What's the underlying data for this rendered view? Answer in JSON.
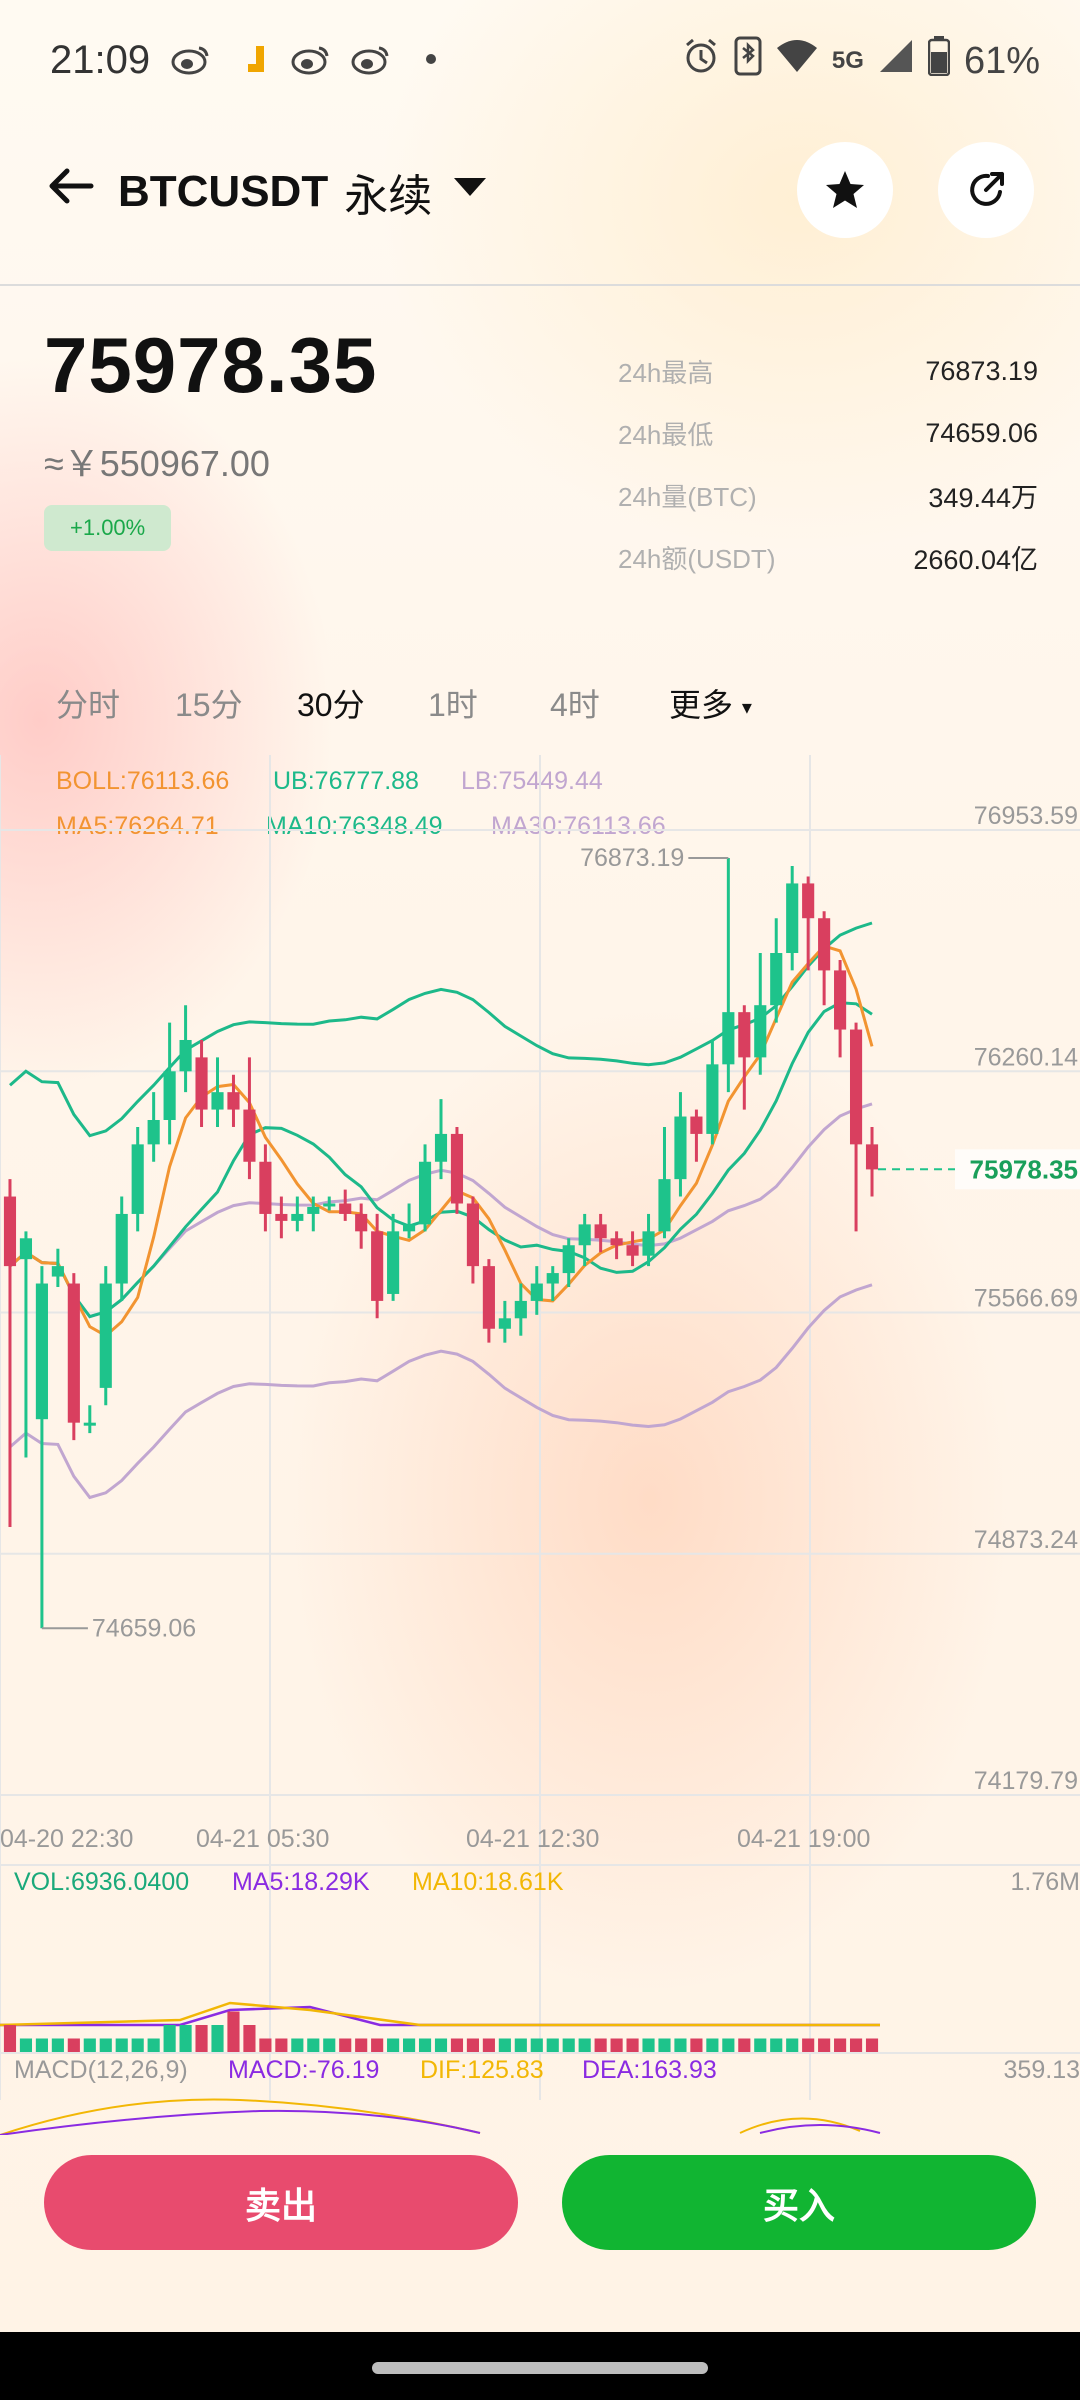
{
  "status_bar": {
    "time": "21:09",
    "battery": "61%",
    "network": "5G",
    "apps": [
      "weibo-icon",
      "binance-icon",
      "weibo-icon",
      "weibo-icon",
      "dot-icon"
    ],
    "indicators": [
      "alarm-icon",
      "bluetooth-icon",
      "wifi-icon",
      "5g-icon",
      "signal-icon",
      "battery-icon"
    ]
  },
  "header": {
    "symbol": "BTCUSDT",
    "contract_type": "永续",
    "back_icon": "arrow-left-icon",
    "dropdown_icon": "caret-down-icon",
    "favorite_icon": "star-icon",
    "share_icon": "share-icon"
  },
  "price": {
    "last": "75978.35",
    "cny": "≈￥550967.00",
    "change_pct": "+1.00%"
  },
  "stats": [
    {
      "label": "24h最高",
      "value": "76873.19"
    },
    {
      "label": "24h最低",
      "value": "74659.06"
    },
    {
      "label": "24h量(BTC)",
      "value": "349.44万"
    },
    {
      "label": "24h额(USDT)",
      "value": "2660.04亿"
    }
  ],
  "tabs": [
    {
      "label": "分时",
      "active": false
    },
    {
      "label": "15分",
      "active": false
    },
    {
      "label": "30分",
      "active": true
    },
    {
      "label": "1时",
      "active": false
    },
    {
      "label": "4时",
      "active": false
    },
    {
      "label": "更多",
      "active": false
    }
  ],
  "indicators": {
    "boll": "BOLL:76113.66",
    "ub": "UB:76777.88",
    "lb": "LB:75449.44",
    "ma5": "MA5:76264.71",
    "ma10": "MA10:76348.49",
    "ma30": "MA30:76113.66",
    "vol": "VOL:6936.0400",
    "vol_ma5": "MA5:18.29K",
    "vol_ma10": "MA10:18.61K",
    "vol_max": "1.76M",
    "macd_name": "MACD(12,26,9)",
    "macd": "MACD:-76.19",
    "dif": "DIF:125.83",
    "dea": "DEA:163.93",
    "macd_max": "359.13"
  },
  "chart_data": {
    "type": "candlestick",
    "price_axis": [
      "76953.59",
      "76260.14",
      "75566.69",
      "74873.24",
      "74179.79"
    ],
    "ylim": [
      74179.79,
      76953.59
    ],
    "time_axis": [
      "04-20 22:30",
      "04-21 05:30",
      "04-21 12:30",
      "04-21 19:00"
    ],
    "high_label": "76873.19",
    "low_label": "74659.06",
    "current_price": "75978.35",
    "candles": [
      [
        75900,
        75700,
        75950,
        74950
      ],
      [
        75720,
        75780,
        75800,
        75150
      ],
      [
        75260,
        75650,
        75700,
        74659
      ],
      [
        75670,
        75700,
        75750,
        75640
      ],
      [
        75650,
        75250,
        75680,
        75200
      ],
      [
        75250,
        75250,
        75300,
        75220
      ],
      [
        75350,
        75650,
        75700,
        75300
      ],
      [
        75650,
        75850,
        75900,
        75600
      ],
      [
        75850,
        76050,
        76100,
        75800
      ],
      [
        76050,
        76120,
        76200,
        76000
      ],
      [
        76120,
        76260,
        76400,
        76050
      ],
      [
        76260,
        76350,
        76450,
        76200
      ],
      [
        76300,
        76150,
        76350,
        76100
      ],
      [
        76150,
        76200,
        76300,
        76100
      ],
      [
        76200,
        76150,
        76250,
        76100
      ],
      [
        76150,
        76000,
        76300,
        75950
      ],
      [
        76000,
        75850,
        76050,
        75800
      ],
      [
        75850,
        75830,
        75900,
        75780
      ],
      [
        75830,
        75850,
        75900,
        75800
      ],
      [
        75850,
        75870,
        75900,
        75800
      ],
      [
        75880,
        75880,
        75900,
        75860
      ],
      [
        75880,
        75850,
        75920,
        75830
      ],
      [
        75850,
        75800,
        75880,
        75750
      ],
      [
        75800,
        75600,
        75850,
        75550
      ],
      [
        75620,
        75800,
        75850,
        75600
      ],
      [
        75800,
        75820,
        75880,
        75780
      ],
      [
        75820,
        76000,
        76050,
        75800
      ],
      [
        76000,
        76080,
        76180,
        75950
      ],
      [
        76080,
        75880,
        76100,
        75850
      ],
      [
        75880,
        75700,
        75900,
        75650
      ],
      [
        75700,
        75520,
        75720,
        75480
      ],
      [
        75520,
        75550,
        75600,
        75480
      ],
      [
        75550,
        75600,
        75650,
        75500
      ],
      [
        75600,
        75650,
        75700,
        75560
      ],
      [
        75650,
        75680,
        75700,
        75600
      ],
      [
        75680,
        75760,
        75780,
        75640
      ],
      [
        75760,
        75820,
        75850,
        75700
      ],
      [
        75820,
        75780,
        75850,
        75740
      ],
      [
        75780,
        75760,
        75800,
        75720
      ],
      [
        75760,
        75730,
        75800,
        75700
      ],
      [
        75730,
        75800,
        75850,
        75700
      ],
      [
        75800,
        75950,
        76100,
        75780
      ],
      [
        75950,
        76130,
        76200,
        75900
      ],
      [
        76130,
        76080,
        76150,
        76000
      ],
      [
        76080,
        76280,
        76350,
        76050
      ],
      [
        76280,
        76430,
        76873,
        76200
      ],
      [
        76430,
        76300,
        76450,
        76150
      ],
      [
        76300,
        76450,
        76600,
        76250
      ],
      [
        76450,
        76600,
        76700,
        76400
      ],
      [
        76600,
        76800,
        76850,
        76550
      ],
      [
        76800,
        76700,
        76820,
        76550
      ],
      [
        76700,
        76550,
        76720,
        76450
      ],
      [
        76550,
        76380,
        76580,
        76300
      ],
      [
        76380,
        76050,
        76400,
        75800
      ],
      [
        76050,
        75978,
        76100,
        75900
      ]
    ],
    "volume": [
      0.2,
      0.1,
      0.1,
      0.1,
      0.1,
      0.1,
      0.1,
      0.1,
      0.1,
      0.1,
      0.2,
      0.2,
      0.2,
      0.2,
      0.3,
      0.2,
      0.1,
      0.1,
      0.1,
      0.1,
      0.1,
      0.1,
      0.1,
      0.1,
      0.1,
      0.1,
      0.1,
      0.1,
      0.1,
      0.1,
      0.1,
      0.1,
      0.1,
      0.1,
      0.1,
      0.1,
      0.1,
      0.1,
      0.1,
      0.1,
      0.1,
      0.1,
      0.1,
      0.1,
      0.1,
      0.1,
      0.1,
      0.1,
      0.1,
      0.1,
      0.1,
      0.1,
      0.1,
      0.1,
      0.1
    ]
  },
  "actions": {
    "sell": "卖出",
    "buy": "买入"
  },
  "colors": {
    "up": "#1ec38b",
    "down": "#d93f5f",
    "ma5": "#f29431",
    "ma10": "#1db98a",
    "ma30": "#c1a6d0",
    "sell": "#e84b6e",
    "buy": "#11b532"
  }
}
